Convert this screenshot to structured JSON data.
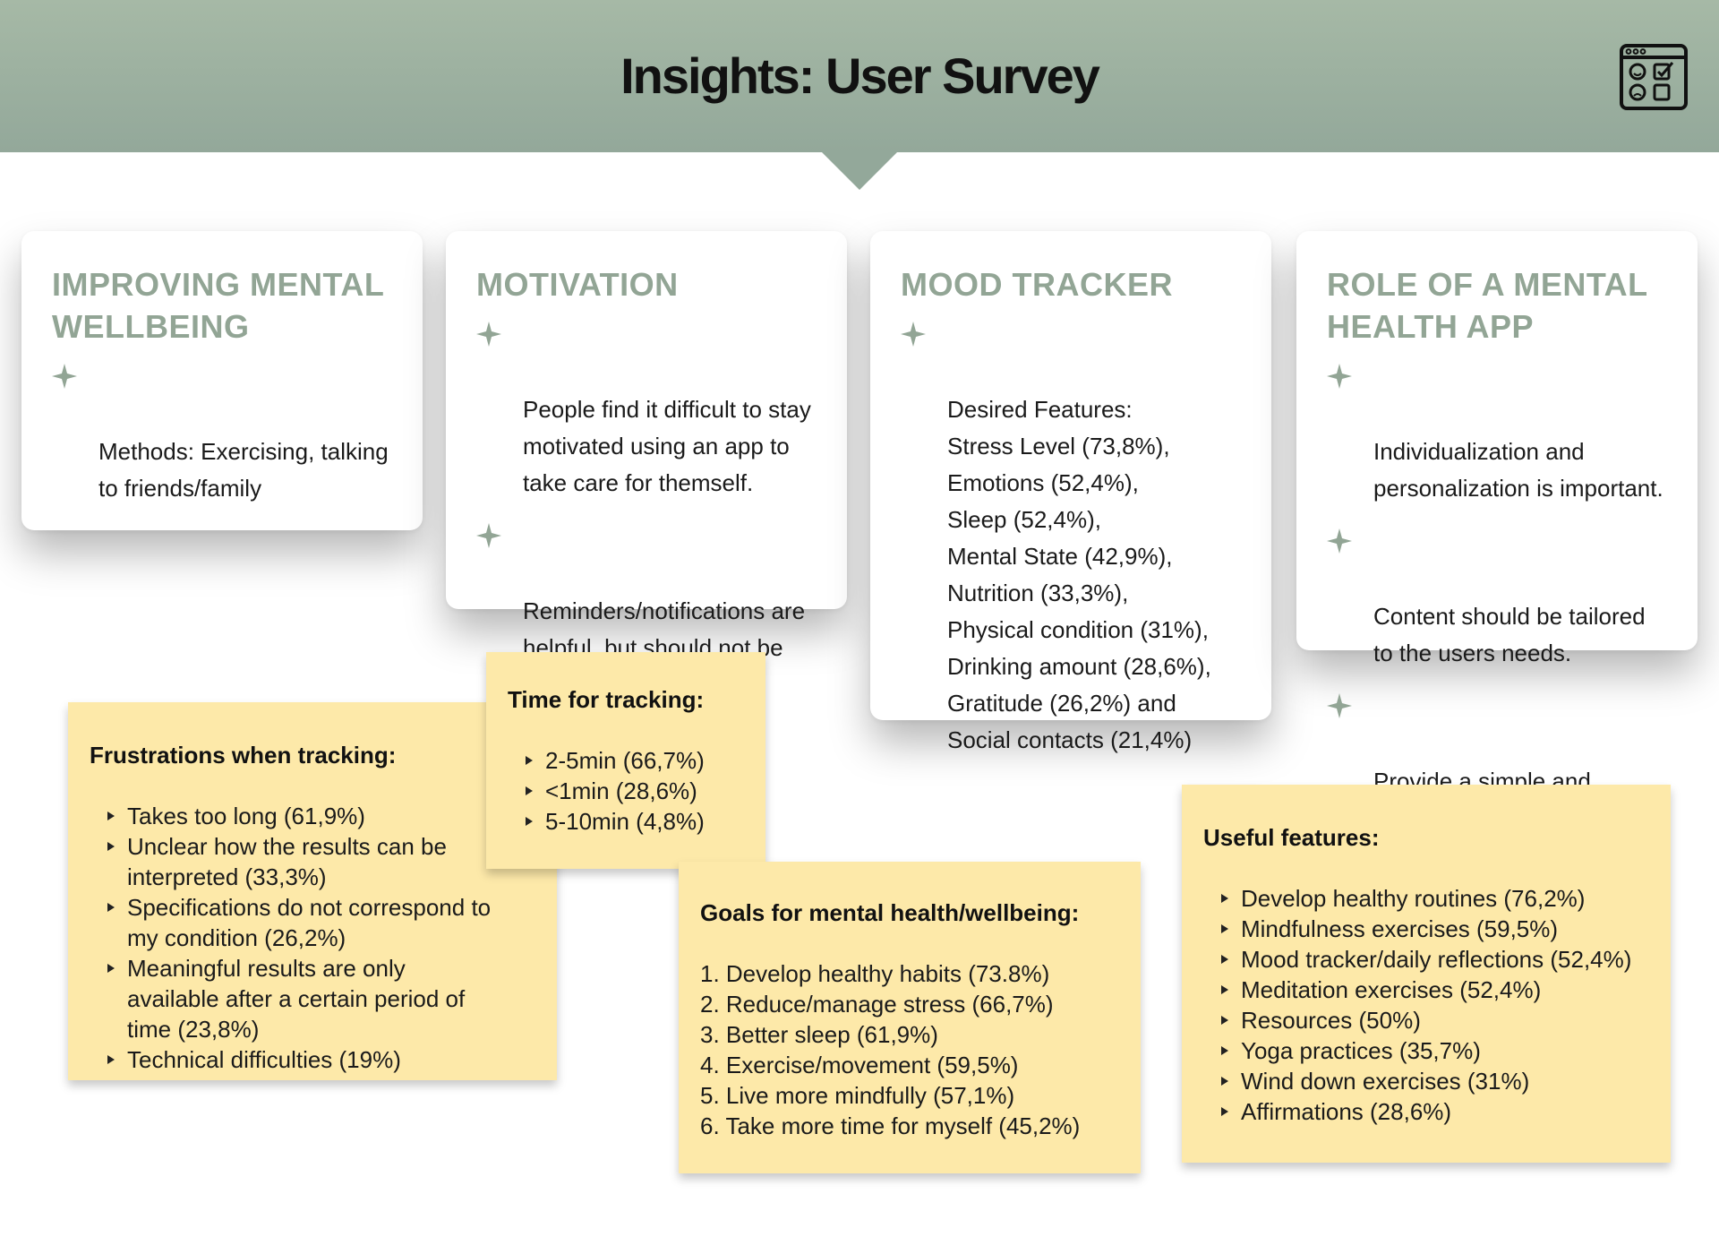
{
  "header": {
    "title": "Insights: User Survey",
    "icon": "survey-browser-icon"
  },
  "colors": {
    "header": "#93a89a",
    "card_title": "#92a595",
    "note": "#fde9a9"
  },
  "cards": {
    "wellbeing": {
      "title": "IMPROVING MENTAL WELLBEING",
      "items": [
        "Methods: Exercising, talking to friends/family"
      ]
    },
    "motivation": {
      "title": "MOTIVATION",
      "items": [
        "People find it difficult to stay motivated using an app to take care for themself.",
        "Reminders/notifications are helpful, but should not be annoying"
      ]
    },
    "mood": {
      "title": "MOOD TRACKER",
      "items": [
        "Desired Features:\nStress Level (73,8%), Emotions (52,4%),\nSleep (52,4%),\nMental State (42,9%), Nutrition (33,3%),\nPhysical condition (31%),\nDrinking amount (28,6%),\nGratitude (26,2%) and\nSocial contacts (21,4%)"
      ]
    },
    "role": {
      "title": "ROLE OF A MENTAL HEALTH APP",
      "items": [
        "Individualization and personalization is important.",
        "Content should be tailored to the users needs.",
        "Provide a simple and calming interface."
      ]
    }
  },
  "notes": {
    "frustrations": {
      "title": "Frustrations when tracking:",
      "items": [
        "Takes too long (61,9%)",
        "Unclear how the results can be interpreted (33,3%)",
        "Specifications do not correspond to my condition (26,2%)",
        "Meaningful results are only available after a certain period of time (23,8%)",
        "Technical difficulties (19%)"
      ]
    },
    "time": {
      "title": "Time for tracking:",
      "items": [
        "2-5min (66,7%)",
        "<1min (28,6%)",
        "5-10min (4,8%)"
      ]
    },
    "goals": {
      "title": "Goals for mental health/wellbeing:",
      "items": [
        "1. Develop healthy habits (73.8%)",
        "2. Reduce/manage stress (66,7%)",
        "3. Better sleep (61,9%)",
        "4. Exercise/movement (59,5%)",
        "5. Live more mindfully (57,1%)",
        "6. Take more time for myself (45,2%)"
      ]
    },
    "useful": {
      "title": "Useful features:",
      "items": [
        "Develop healthy routines (76,2%)",
        "Mindfulness exercises (59,5%)",
        "Mood tracker/daily reflections (52,4%)",
        "Meditation exercises (52,4%)",
        "Resources (50%)",
        "Yoga practices (35,7%)",
        "Wind down exercises (31%)",
        "Affirmations (28,6%)"
      ]
    }
  }
}
